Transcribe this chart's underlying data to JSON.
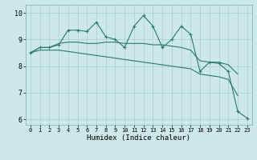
{
  "x": [
    0,
    1,
    2,
    3,
    4,
    5,
    6,
    7,
    8,
    9,
    10,
    11,
    12,
    13,
    14,
    15,
    16,
    17,
    18,
    19,
    20,
    21,
    22,
    23
  ],
  "line1": [
    8.5,
    8.7,
    8.7,
    8.8,
    9.35,
    9.35,
    9.3,
    9.65,
    9.1,
    9.0,
    8.7,
    9.5,
    9.9,
    9.5,
    8.7,
    9.0,
    9.5,
    9.2,
    7.8,
    8.15,
    8.1,
    7.8,
    6.3,
    6.05
  ],
  "line2": [
    8.5,
    8.7,
    8.7,
    8.85,
    8.9,
    8.9,
    8.85,
    8.85,
    8.9,
    8.9,
    8.85,
    8.85,
    8.85,
    8.8,
    8.8,
    8.75,
    8.7,
    8.6,
    8.2,
    8.15,
    8.15,
    8.05,
    7.7,
    null
  ],
  "line3": [
    8.5,
    8.6,
    8.6,
    8.6,
    8.55,
    8.5,
    8.45,
    8.4,
    8.35,
    8.3,
    8.25,
    8.2,
    8.15,
    8.1,
    8.05,
    8.0,
    7.95,
    7.9,
    7.7,
    7.65,
    7.6,
    7.5,
    6.9,
    null
  ],
  "line_color": "#2a7a6f",
  "bg_color": "#cce8e8",
  "grid_color": "#aacece",
  "xlabel": "Humidex (Indice chaleur)",
  "ylim": [
    5.8,
    10.3
  ],
  "xlim": [
    -0.5,
    23.5
  ],
  "yticks": [
    6,
    7,
    8,
    9,
    10
  ],
  "xticks": [
    0,
    1,
    2,
    3,
    4,
    5,
    6,
    7,
    8,
    9,
    10,
    11,
    12,
    13,
    14,
    15,
    16,
    17,
    18,
    19,
    20,
    21,
    22,
    23
  ]
}
